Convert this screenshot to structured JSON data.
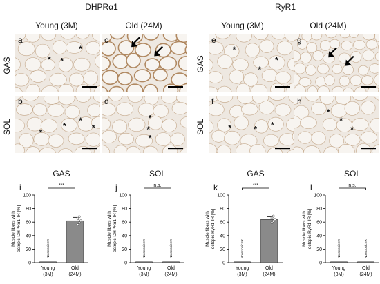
{
  "figure": {
    "group_titles": [
      "DHPRα1",
      "RyR1"
    ],
    "column_labels": [
      "Young (3M)",
      "Old (24M)",
      "Young (3M)",
      "Old (24M)"
    ],
    "row_labels": [
      "GAS",
      "SOL"
    ],
    "panels": [
      {
        "letter": "a",
        "tissue": "GAS",
        "age": "Young (3M)",
        "stain": "DHPRα1",
        "markers": "asterisks"
      },
      {
        "letter": "c",
        "tissue": "GAS",
        "age": "Old (24M)",
        "stain": "DHPRα1",
        "markers": "arrows"
      },
      {
        "letter": "e",
        "tissue": "GAS",
        "age": "Young (3M)",
        "stain": "RyR1",
        "markers": "asterisks"
      },
      {
        "letter": "g",
        "tissue": "GAS",
        "age": "Old (24M)",
        "stain": "RyR1",
        "markers": "arrows"
      },
      {
        "letter": "b",
        "tissue": "SOL",
        "age": "Young (3M)",
        "stain": "DHPRα1",
        "markers": "asterisks"
      },
      {
        "letter": "d",
        "tissue": "SOL",
        "age": "Old (24M)",
        "stain": "DHPRα1",
        "markers": "asterisks"
      },
      {
        "letter": "f",
        "tissue": "SOL",
        "age": "Young (3M)",
        "stain": "RyR1",
        "markers": "asterisks"
      },
      {
        "letter": "h",
        "tissue": "SOL",
        "age": "Old (24M)",
        "stain": "RyR1",
        "markers": "asterisks"
      }
    ],
    "marker_text": {
      "asterisk": "*"
    },
    "colors": {
      "tissue_bg": "#eee8e1",
      "fiber": "#f7f4f0",
      "stain": "#a87d52",
      "bar": "#8a8a8a"
    }
  },
  "chart_data": [
    {
      "type": "bar",
      "letter": "i",
      "title": "GAS",
      "ylabel": "Muscle fibers with ectopic DHPRα1-IR [%]",
      "ylim": [
        0,
        100
      ],
      "yticks": [
        "0",
        "20",
        "40",
        "60",
        "80",
        "100"
      ],
      "categories": [
        "Young (3M)",
        "Old (24M)"
      ],
      "values": [
        0,
        62
      ],
      "errors": [
        0,
        5
      ],
      "bar_notes": [
        "No ectopic-IR",
        ""
      ],
      "significance": "***"
    },
    {
      "type": "bar",
      "letter": "j",
      "title": "SOL",
      "ylabel": "Muscle fibers with ectopic DHPRα1-IR [%]",
      "ylim": [
        0,
        100
      ],
      "yticks": [
        "0",
        "20",
        "40",
        "60",
        "80",
        "100"
      ],
      "categories": [
        "Young (3M)",
        "Old (24M)"
      ],
      "values": [
        0,
        0
      ],
      "errors": [
        0,
        0
      ],
      "bar_notes": [
        "No ectopic-IR",
        "No ectopic-IR"
      ],
      "significance": "n.s."
    },
    {
      "type": "bar",
      "letter": "k",
      "title": "GAS",
      "ylabel": "Muscle fibers with ectopic RyR1-IR [%]",
      "ylim": [
        0,
        100
      ],
      "yticks": [
        "0",
        "20",
        "40",
        "60",
        "80",
        "100"
      ],
      "categories": [
        "Young (3M)",
        "Old (24M)"
      ],
      "values": [
        0,
        64
      ],
      "errors": [
        0,
        4
      ],
      "bar_notes": [
        "No ectopic-IR",
        ""
      ],
      "significance": "***"
    },
    {
      "type": "bar",
      "letter": "l",
      "title": "SOL",
      "ylabel": "Muscle fibers with ectopic RyR1-IR [%]",
      "ylim": [
        0,
        100
      ],
      "yticks": [
        "0",
        "20",
        "40",
        "60",
        "80",
        "100"
      ],
      "categories": [
        "Young (3M)",
        "Old (24M)"
      ],
      "values": [
        0,
        0
      ],
      "errors": [
        0,
        0
      ],
      "bar_notes": [
        "No ectopic-IR",
        "No ectopic-IR"
      ],
      "significance": "n.s."
    }
  ]
}
